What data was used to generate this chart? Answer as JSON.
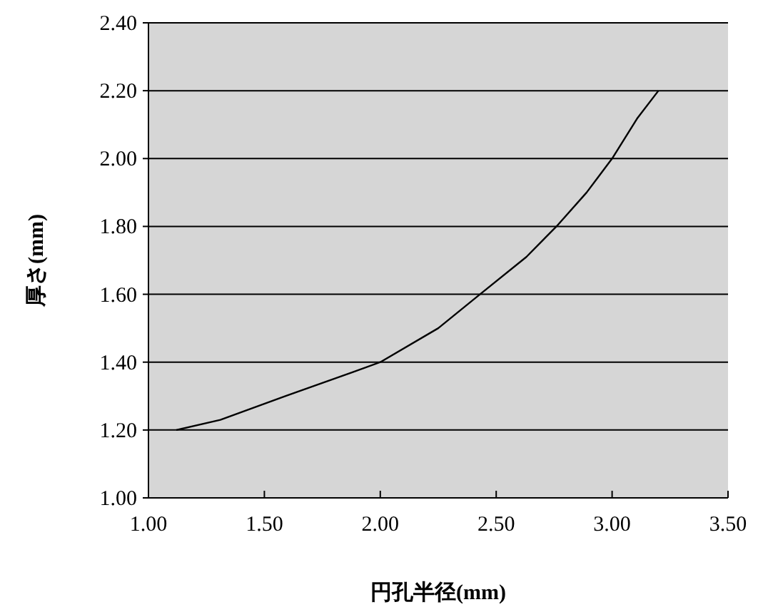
{
  "chart_data": {
    "type": "line",
    "xlabel": "円孔半径(mm)",
    "ylabel": "厚さ(mm)",
    "x": [
      1.12,
      1.31,
      1.59,
      1.88,
      2.0,
      2.25,
      2.43,
      2.63,
      2.76,
      2.89,
      3.0,
      3.11,
      3.2
    ],
    "series": [
      {
        "color": "#000000",
        "values": [
          1.2,
          1.23,
          1.3,
          1.37,
          1.4,
          1.5,
          1.6,
          1.71,
          1.8,
          1.9,
          2.0,
          2.12,
          2.2
        ]
      }
    ],
    "xlim": [
      1.0,
      3.5
    ],
    "ylim": [
      1.0,
      2.4
    ],
    "xticks": [
      {
        "value": 1,
        "label": "1.00"
      },
      {
        "value": 1.5,
        "label": "1.50"
      },
      {
        "value": 2,
        "label": "2.00"
      },
      {
        "value": 2.5,
        "label": "2.50"
      },
      {
        "value": 3,
        "label": "3.00"
      },
      {
        "value": 3.5,
        "label": "3.50"
      }
    ],
    "yticks": [
      {
        "value": 1,
        "label": "1.00"
      },
      {
        "value": 1.2,
        "label": "1.20"
      },
      {
        "value": 1.4,
        "label": "1.40"
      },
      {
        "value": 1.6,
        "label": "1.60"
      },
      {
        "value": 1.8,
        "label": "1.80"
      },
      {
        "value": 2,
        "label": "2.00"
      },
      {
        "value": 2.2,
        "label": "2.20"
      },
      {
        "value": 2.4,
        "label": "2.40"
      }
    ],
    "grid": "y",
    "marker": "none",
    "line_style": "solid"
  }
}
